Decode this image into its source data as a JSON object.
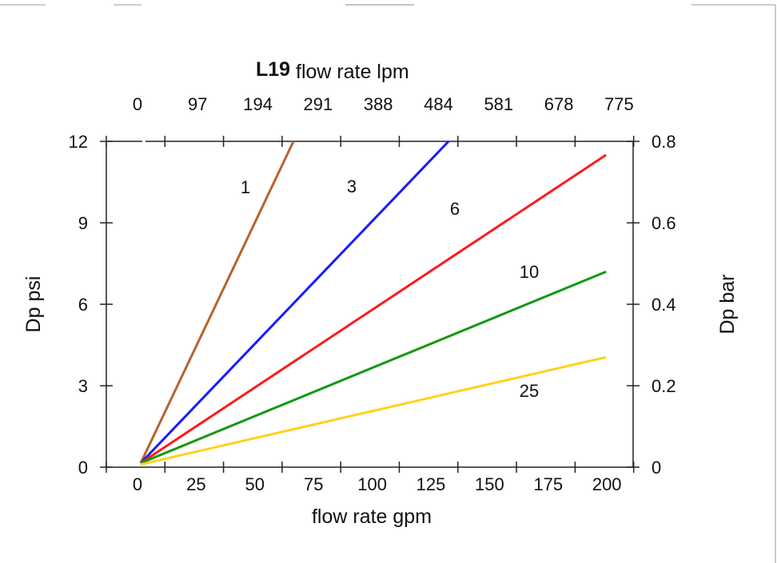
{
  "chart_data": {
    "type": "line",
    "title": "L19",
    "top_axis_label": "flow rate lpm",
    "top_ticks": [
      "0",
      "97",
      "194",
      "291",
      "388",
      "484",
      "581",
      "678",
      "775"
    ],
    "xlabel": "flow rate gpm",
    "x_ticks": [
      "0",
      "25",
      "50",
      "75",
      "100",
      "125",
      "150",
      "175",
      "200"
    ],
    "xlim": [
      0,
      200
    ],
    "ylabel": "Dp psi",
    "y_ticks": [
      "0",
      "3",
      "6",
      "9",
      "12"
    ],
    "ylim": [
      0,
      12
    ],
    "y2label": "Dp bar",
    "y2_ticks": [
      "0",
      "0.2",
      "0.4",
      "0.6",
      "0.8"
    ],
    "y2lim": [
      0,
      0.8
    ],
    "grid": false,
    "series": [
      {
        "name": "1",
        "color": "#b5642d",
        "points": [
          [
            0,
            0.15
          ],
          [
            65,
            12
          ]
        ]
      },
      {
        "name": "3",
        "color": "#1a1aff",
        "points": [
          [
            0,
            0.15
          ],
          [
            131,
            12
          ]
        ]
      },
      {
        "name": "6",
        "color": "#ff1a1a",
        "points": [
          [
            0,
            0.15
          ],
          [
            198,
            11.5
          ]
        ]
      },
      {
        "name": "10",
        "color": "#119911",
        "points": [
          [
            0,
            0.15
          ],
          [
            198,
            7.2
          ]
        ]
      },
      {
        "name": "25",
        "color": "#ffd21a",
        "points": [
          [
            0,
            0.1
          ],
          [
            198,
            4.05
          ]
        ]
      }
    ]
  }
}
